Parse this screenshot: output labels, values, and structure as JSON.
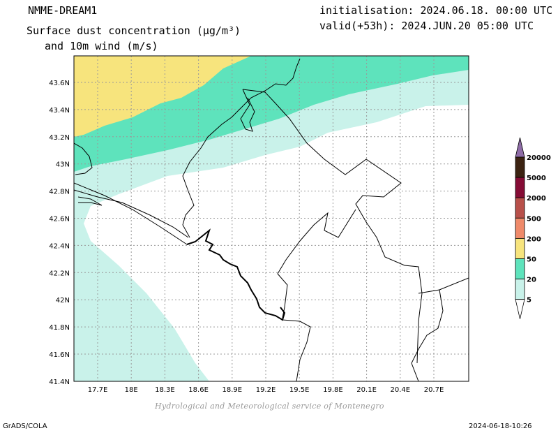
{
  "header": {
    "model_name": "NMME-DREAM1",
    "title_line1": "Surface dust concentration (µg/m³)",
    "title_line2": "and 10m wind (m/s)",
    "initialisation": "initialisation: 2024.06.18. 00:00 UTC",
    "valid": "valid(+53h): 2024.JUN.20 05:00 UTC"
  },
  "map": {
    "lat_labels": [
      "43.6N",
      "43.4N",
      "43.2N",
      "43N",
      "42.8N",
      "42.6N",
      "42.4N",
      "42.2N",
      "42N",
      "41.8N",
      "41.6N",
      "41.4N"
    ],
    "lon_labels": [
      "17.7E",
      "18E",
      "18.3E",
      "18.6E",
      "18.9E",
      "19.2E",
      "19.5E",
      "19.8E",
      "20.1E",
      "20.4E",
      "20.7E"
    ],
    "grid": true
  },
  "legend": {
    "levels": [
      "5",
      "20",
      "50",
      "200",
      "500",
      "2000",
      "5000",
      "20000"
    ],
    "colors": [
      "#ffffff",
      "#c9f2ea",
      "#5ee3bc",
      "#f7e47d",
      "#ef8a6a",
      "#b8504a",
      "#850c35",
      "#3c2312",
      "#8e6ca6"
    ]
  },
  "footer": {
    "credit": "Hydrological and Meteorological service of Montenegro",
    "grads": "GrADS/COLA",
    "timestamp": "2024-06-18-10:26"
  }
}
